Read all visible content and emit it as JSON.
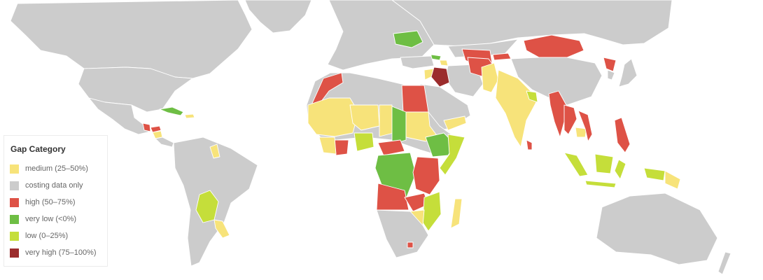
{
  "legend": {
    "title": "Gap Category",
    "items": [
      {
        "label": "medium (25–50%)",
        "color": "#f7e37a"
      },
      {
        "label": "costing data only",
        "color": "#cccccc"
      },
      {
        "label": "high (50–75%)",
        "color": "#de5246"
      },
      {
        "label": "very low (<0%)",
        "color": "#6ebe44"
      },
      {
        "label": "low (0–25%)",
        "color": "#c5de3a"
      },
      {
        "label": "very high (75–100%)",
        "color": "#9b2c2c"
      }
    ]
  },
  "regions": [
    {
      "name": "Ukraine",
      "category": "very low (<0%)"
    },
    {
      "name": "Cuba",
      "category": "very low (<0%)"
    },
    {
      "name": "Sudan",
      "category": "very low (<0%)"
    },
    {
      "name": "DR Congo",
      "category": "very low (<0%)"
    },
    {
      "name": "Ethiopia",
      "category": "very low (<0%)"
    },
    {
      "name": "Iraq",
      "category": "very high (75–100%)"
    },
    {
      "name": "Mongolia",
      "category": "high (50–75%)"
    },
    {
      "name": "Egypt",
      "category": "high (50–75%)"
    },
    {
      "name": "Angola",
      "category": "high (50–75%)"
    },
    {
      "name": "Myanmar",
      "category": "high (50–75%)"
    },
    {
      "name": "Philippines",
      "category": "high (50–75%)"
    },
    {
      "name": "Sri Lanka",
      "category": "high (50–75%)"
    },
    {
      "name": "India",
      "category": "medium (25–50%)"
    },
    {
      "name": "Niger",
      "category": "medium (25–50%)"
    },
    {
      "name": "Madagascar",
      "category": "medium (25–50%)"
    },
    {
      "name": "Bolivia",
      "category": "low (0–25%)"
    },
    {
      "name": "Indonesia",
      "category": "low (0–25%)"
    },
    {
      "name": "Mozambique",
      "category": "low (0–25%)"
    }
  ]
}
